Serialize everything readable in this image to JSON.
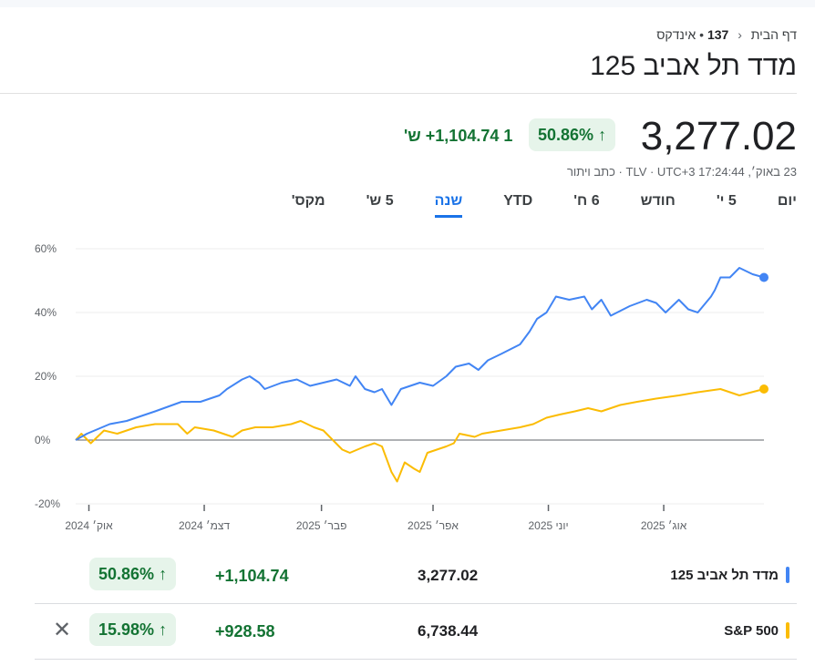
{
  "breadcrumb": {
    "home": "דף הבית",
    "code": "137",
    "type": "אינדקס"
  },
  "title": "מדד תל אביב 125",
  "quote": {
    "price": "3,277.02",
    "change_pct": "50.86%",
    "change_abs": "+1,104.74",
    "period": "1 ש'",
    "timestamp": "23 באוק׳, 17:24:44 TLV · UTC+3 · כתב ויתור"
  },
  "tabs": [
    "יום",
    "5 י'",
    "חודש",
    "6 ח'",
    "YTD",
    "שנה",
    "5 ש'",
    "מקס'"
  ],
  "active_tab": "שנה",
  "colors": {
    "primary": "#4285f4",
    "compare": "#fbbc04",
    "up": "#137333",
    "accent": "#1a73e8"
  },
  "chart_data": {
    "type": "line",
    "x_unit": "days since 2024-10-01",
    "ylim": [
      -20,
      60
    ],
    "yticks": [
      "60%",
      "40%",
      "20%",
      "0%",
      "-20%"
    ],
    "yvals": [
      60,
      40,
      20,
      0,
      -20
    ],
    "xticks": [
      {
        "label": "אוק׳ 2024",
        "day": 0
      },
      {
        "label": "דצמ׳ 2024",
        "day": 61
      },
      {
        "label": "פבר׳ 2025",
        "day": 123
      },
      {
        "label": "אפר׳ 2025",
        "day": 182
      },
      {
        "label": "יוני 2025",
        "day": 243
      },
      {
        "label": "אוג׳ 2025",
        "day": 304
      }
    ],
    "xlim": [
      -7,
      357
    ],
    "series": [
      {
        "name": "מדד תל אביב 125",
        "color": "#4285f4",
        "points": [
          [
            -7,
            0
          ],
          [
            -1,
            2
          ],
          [
            11,
            5
          ],
          [
            20,
            6
          ],
          [
            35,
            9
          ],
          [
            49,
            12
          ],
          [
            59,
            12
          ],
          [
            69,
            14
          ],
          [
            73,
            16
          ],
          [
            81,
            19
          ],
          [
            85,
            20
          ],
          [
            90,
            18
          ],
          [
            93,
            16
          ],
          [
            102,
            18
          ],
          [
            110,
            19
          ],
          [
            117,
            17
          ],
          [
            124,
            18
          ],
          [
            131,
            19
          ],
          [
            138,
            17
          ],
          [
            141,
            20
          ],
          [
            146,
            16
          ],
          [
            151,
            15
          ],
          [
            155,
            16
          ],
          [
            160,
            11
          ],
          [
            165,
            16
          ],
          [
            175,
            18
          ],
          [
            182,
            17
          ],
          [
            189,
            20
          ],
          [
            194,
            23
          ],
          [
            201,
            24
          ],
          [
            206,
            22
          ],
          [
            211,
            25
          ],
          [
            218,
            27
          ],
          [
            228,
            30
          ],
          [
            233,
            34
          ],
          [
            237,
            38
          ],
          [
            242,
            40
          ],
          [
            247,
            45
          ],
          [
            254,
            44
          ],
          [
            262,
            45
          ],
          [
            266,
            41
          ],
          [
            271,
            44
          ],
          [
            276,
            39
          ],
          [
            286,
            42
          ],
          [
            295,
            44
          ],
          [
            300,
            43
          ],
          [
            305,
            40
          ],
          [
            312,
            44
          ],
          [
            317,
            41
          ],
          [
            322,
            40
          ],
          [
            329,
            45
          ],
          [
            331,
            47
          ],
          [
            334,
            51
          ],
          [
            339,
            51
          ],
          [
            344,
            54
          ],
          [
            351,
            52
          ],
          [
            357,
            51
          ]
        ]
      },
      {
        "name": "S&P 500",
        "color": "#fbbc04",
        "points": [
          [
            -7,
            0
          ],
          [
            -4,
            2
          ],
          [
            1,
            -1
          ],
          [
            8,
            3
          ],
          [
            15,
            2
          ],
          [
            25,
            4
          ],
          [
            35,
            5
          ],
          [
            47,
            5
          ],
          [
            52,
            2
          ],
          [
            56,
            4
          ],
          [
            66,
            3
          ],
          [
            76,
            1
          ],
          [
            81,
            3
          ],
          [
            88,
            4
          ],
          [
            97,
            4
          ],
          [
            107,
            5
          ],
          [
            112,
            6
          ],
          [
            119,
            4
          ],
          [
            124,
            3
          ],
          [
            129,
            0
          ],
          [
            134,
            -3
          ],
          [
            138,
            -4
          ],
          [
            146,
            -2
          ],
          [
            151,
            -1
          ],
          [
            155,
            -2
          ],
          [
            160,
            -10
          ],
          [
            163,
            -13
          ],
          [
            167,
            -7
          ],
          [
            172,
            -9
          ],
          [
            175,
            -10
          ],
          [
            179,
            -4
          ],
          [
            184,
            -3
          ],
          [
            189,
            -2
          ],
          [
            193,
            -1
          ],
          [
            196,
            2
          ],
          [
            204,
            1
          ],
          [
            208,
            2
          ],
          [
            218,
            3
          ],
          [
            228,
            4
          ],
          [
            235,
            5
          ],
          [
            242,
            7
          ],
          [
            249,
            8
          ],
          [
            257,
            9
          ],
          [
            264,
            10
          ],
          [
            271,
            9
          ],
          [
            281,
            11
          ],
          [
            290,
            12
          ],
          [
            300,
            13
          ],
          [
            312,
            14
          ],
          [
            322,
            15
          ],
          [
            334,
            16
          ],
          [
            339,
            15
          ],
          [
            344,
            14
          ],
          [
            357,
            16
          ]
        ]
      }
    ]
  },
  "compare": [
    {
      "name": "מדד תל אביב 125",
      "value": "3,277.02",
      "change": "+1,104.74",
      "pct": "50.86%",
      "color": "#4285f4"
    },
    {
      "name": "S&P 500",
      "value": "6,738.44",
      "change": "+928.58",
      "pct": "15.98%",
      "color": "#fbbc04",
      "remove": "✕"
    }
  ]
}
